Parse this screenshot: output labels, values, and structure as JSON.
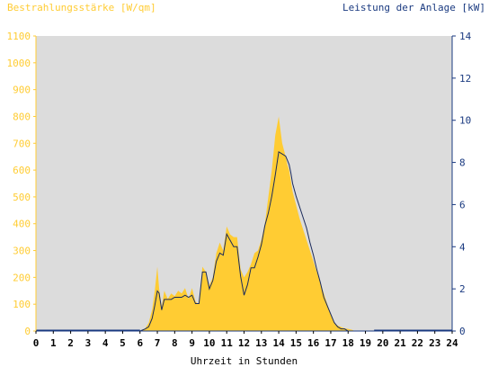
{
  "chart_data": {
    "type": "area",
    "y_left_label": "Bestrahlungsstärke [W/qm]",
    "y_right_label": "Leistung der Anlage [kW]",
    "xlabel": "Uhrzeit in Stunden",
    "xlim": [
      0,
      24
    ],
    "ylim_left": [
      0,
      1100
    ],
    "ylim_right": [
      0,
      14
    ],
    "x_ticks": [
      0,
      1,
      2,
      3,
      4,
      5,
      6,
      7,
      8,
      9,
      10,
      11,
      12,
      13,
      14,
      15,
      16,
      17,
      18,
      19,
      20,
      21,
      22,
      23,
      24
    ],
    "y_left_ticks": [
      0,
      100,
      200,
      300,
      400,
      500,
      600,
      700,
      800,
      900,
      1000,
      1100
    ],
    "y_right_ticks": [
      0,
      2,
      4,
      6,
      8,
      10,
      12,
      14
    ],
    "grid": false,
    "colors": {
      "background": "#dcdcdc",
      "irradiance_fill": "#ffcc33",
      "power_line": "#1a2a5a",
      "left_axis": "#ffcc33",
      "right_axis": "#1a3a80",
      "label_left": "#ffcc33",
      "label_right": "#1a3a80"
    },
    "series": [
      {
        "unit": "W/qm",
        "axis": "left",
        "type": "area",
        "x": [
          6.0,
          6.3,
          6.5,
          6.7,
          6.85,
          7.0,
          7.1,
          7.25,
          7.4,
          7.6,
          7.8,
          8.0,
          8.2,
          8.4,
          8.6,
          8.8,
          9.0,
          9.2,
          9.4,
          9.6,
          9.8,
          10.0,
          10.2,
          10.4,
          10.6,
          10.8,
          11.0,
          11.2,
          11.4,
          11.6,
          11.8,
          12.0,
          12.2,
          12.4,
          12.6,
          12.8,
          13.0,
          13.2,
          13.4,
          13.6,
          13.8,
          14.0,
          14.2,
          14.4,
          14.5,
          14.6,
          14.7,
          14.8,
          15.0,
          15.2,
          15.4,
          15.6,
          15.8,
          16.0,
          16.2,
          16.4,
          16.6,
          16.8,
          17.0,
          17.2,
          17.4,
          17.6,
          17.8,
          18.0,
          18.2,
          18.4,
          18.6,
          18.8,
          19.0,
          19.2,
          19.5
        ],
        "y": [
          0,
          10,
          30,
          80,
          150,
          240,
          160,
          90,
          150,
          120,
          140,
          130,
          150,
          140,
          160,
          120,
          160,
          110,
          100,
          240,
          220,
          170,
          200,
          290,
          330,
          300,
          390,
          360,
          350,
          350,
          230,
          200,
          220,
          250,
          290,
          300,
          340,
          400,
          500,
          600,
          730,
          800,
          700,
          650,
          620,
          600,
          560,
          520,
          470,
          420,
          380,
          340,
          300,
          260,
          220,
          180,
          140,
          100,
          60,
          30,
          20,
          15,
          10,
          8,
          5,
          0,
          0,
          0,
          0,
          0,
          0
        ]
      },
      {
        "unit": "kW",
        "axis": "right",
        "type": "line",
        "x": [
          6.0,
          6.3,
          6.5,
          6.7,
          6.85,
          7.0,
          7.1,
          7.25,
          7.4,
          7.6,
          7.8,
          8.0,
          8.2,
          8.4,
          8.6,
          8.8,
          9.0,
          9.2,
          9.4,
          9.6,
          9.8,
          10.0,
          10.2,
          10.4,
          10.6,
          10.8,
          11.0,
          11.2,
          11.4,
          11.6,
          11.8,
          12.0,
          12.2,
          12.4,
          12.6,
          12.8,
          13.0,
          13.2,
          13.4,
          13.6,
          13.8,
          14.0,
          14.2,
          14.4,
          14.5,
          14.6,
          14.7,
          14.8,
          15.0,
          15.2,
          15.4,
          15.6,
          15.8,
          16.0,
          16.2,
          16.4,
          16.6,
          16.8,
          17.0,
          17.2,
          17.4,
          17.6,
          17.8,
          18.0,
          18.2,
          18.4,
          18.6,
          18.8,
          19.0,
          19.2,
          19.5
        ],
        "y": [
          0,
          0.1,
          0.2,
          0.6,
          1.2,
          1.9,
          1.8,
          1.0,
          1.5,
          1.5,
          1.5,
          1.6,
          1.6,
          1.6,
          1.7,
          1.6,
          1.7,
          1.3,
          1.3,
          2.8,
          2.8,
          2.0,
          2.4,
          3.3,
          3.7,
          3.6,
          4.6,
          4.3,
          4.0,
          4.0,
          2.6,
          1.7,
          2.2,
          3.0,
          3.0,
          3.5,
          4.1,
          5.0,
          5.6,
          6.4,
          7.4,
          8.5,
          8.4,
          8.3,
          8.1,
          7.9,
          7.5,
          7.0,
          6.4,
          5.9,
          5.4,
          4.9,
          4.2,
          3.6,
          2.9,
          2.3,
          1.6,
          1.2,
          0.8,
          0.4,
          0.2,
          0.1,
          0.1,
          0,
          0,
          0,
          0,
          0,
          0,
          0,
          0
        ]
      }
    ]
  }
}
